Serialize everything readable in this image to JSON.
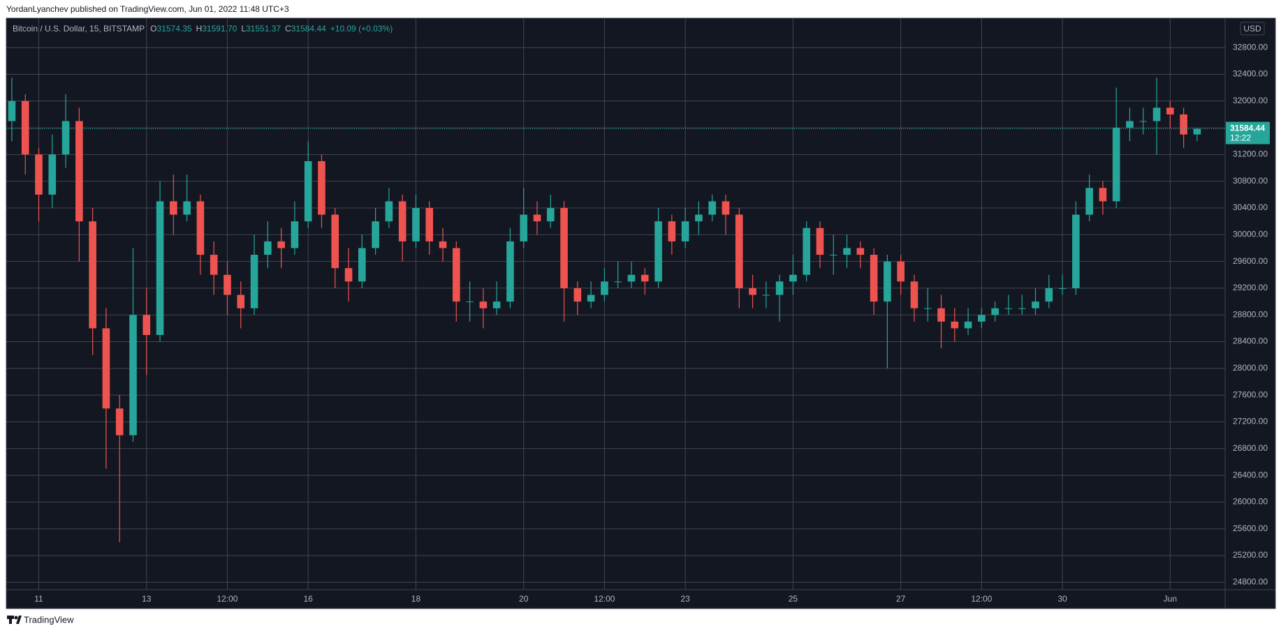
{
  "header": {
    "text": "YordanLyanchev published on TradingView.com, Jun 01, 2022 11:48 UTC+3"
  },
  "footer": {
    "brand": "TradingView"
  },
  "chart_data": {
    "type": "candlestick",
    "title": "Bitcoin / U.S. Dollar, 15, BITSTAMP",
    "legend": [
      {
        "key": "O",
        "value": "31574.35"
      },
      {
        "key": "H",
        "value": "31591.70"
      },
      {
        "key": "L",
        "value": "31551.37"
      },
      {
        "key": "C",
        "value": "31584.44"
      }
    ],
    "change": "+10.09 (+0.03%)",
    "currency": "USD",
    "countdown": "12:22",
    "up_color": "#26a69a",
    "down_color": "#ef5350",
    "grid": true,
    "xlim": [
      -0.59,
      22.02
    ],
    "xticks": [
      {
        "value": 0,
        "label": "11"
      },
      {
        "value": 2,
        "label": "13"
      },
      {
        "value": 3.5,
        "label": "12:00"
      },
      {
        "value": 5,
        "label": "16"
      },
      {
        "value": 7,
        "label": "18"
      },
      {
        "value": 9,
        "label": "20"
      },
      {
        "value": 10.5,
        "label": "12:00"
      },
      {
        "value": 12,
        "label": "23"
      },
      {
        "value": 14,
        "label": "25"
      },
      {
        "value": 16,
        "label": "27"
      },
      {
        "value": 17.5,
        "label": "12:00"
      },
      {
        "value": 19,
        "label": "30"
      },
      {
        "value": 21,
        "label": "Jun"
      }
    ],
    "ylim": [
      24720,
      33240
    ],
    "yticks": [
      {
        "value": 24800,
        "label": "24800.00"
      },
      {
        "value": 25200,
        "label": "25200.00"
      },
      {
        "value": 25600,
        "label": "25600.00"
      },
      {
        "value": 26000,
        "label": "26000.00"
      },
      {
        "value": 26400,
        "label": "26400.00"
      },
      {
        "value": 26800,
        "label": "26800.00"
      },
      {
        "value": 27200,
        "label": "27200.00"
      },
      {
        "value": 27600,
        "label": "27600.00"
      },
      {
        "value": 28000,
        "label": "28000.00"
      },
      {
        "value": 28400,
        "label": "28400.00"
      },
      {
        "value": 28800,
        "label": "28800.00"
      },
      {
        "value": 29200,
        "label": "29200.00"
      },
      {
        "value": 29600,
        "label": "29600.00"
      },
      {
        "value": 30000,
        "label": "30000.00"
      },
      {
        "value": 30400,
        "label": "30400.00"
      },
      {
        "value": 30800,
        "label": "30800.00"
      },
      {
        "value": 31200,
        "label": "31200.00"
      },
      {
        "value": 31600,
        "label": "31600.00"
      },
      {
        "value": 32000,
        "label": "32000.00"
      },
      {
        "value": 32400,
        "label": "32400.00"
      },
      {
        "value": 32800,
        "label": "32800.00"
      }
    ],
    "x": [
      -0.5,
      -0.25,
      0,
      0.25,
      0.5,
      0.75,
      1,
      1.25,
      1.5,
      1.75,
      2,
      2.25,
      2.5,
      2.75,
      3,
      3.25,
      3.5,
      3.75,
      4,
      4.25,
      4.5,
      4.75,
      5,
      5.25,
      5.5,
      5.75,
      6,
      6.25,
      6.5,
      6.75,
      7,
      7.25,
      7.5,
      7.75,
      8,
      8.25,
      8.5,
      8.75,
      9,
      9.25,
      9.5,
      9.75,
      10,
      10.25,
      10.5,
      10.75,
      11,
      11.25,
      11.5,
      11.75,
      12,
      12.25,
      12.5,
      12.75,
      13,
      13.25,
      13.5,
      13.75,
      14,
      14.25,
      14.5,
      14.75,
      15,
      15.25,
      15.5,
      15.75,
      16,
      16.25,
      16.5,
      16.75,
      17,
      17.25,
      17.5,
      17.75,
      18,
      18.25,
      18.5,
      18.75,
      19,
      19.25,
      19.5,
      19.75,
      20,
      20.25,
      20.5,
      20.75,
      21,
      21.25,
      21.5
    ],
    "open": [
      31700,
      32000,
      31200,
      30600,
      31200,
      31700,
      30200,
      28600,
      27400,
      27000,
      28800,
      28500,
      30500,
      30300,
      30500,
      29700,
      29400,
      29100,
      28900,
      29700,
      29900,
      29800,
      30200,
      31100,
      30300,
      29500,
      29300,
      29800,
      30200,
      30500,
      29900,
      30400,
      29900,
      29800,
      29000,
      29000,
      28900,
      29000,
      29900,
      30300,
      30200,
      30400,
      29200,
      29000,
      29100,
      29300,
      29300,
      29400,
      29300,
      30200,
      29900,
      30200,
      30300,
      30500,
      30300,
      29200,
      29100,
      29100,
      29300,
      29400,
      30100,
      29700,
      29700,
      29800,
      29700,
      29000,
      29600,
      29300,
      28900,
      28900,
      28700,
      28600,
      28700,
      28800,
      28900,
      28900,
      28900,
      29000,
      29200,
      29200,
      30300,
      30700,
      30500,
      31600,
      31700,
      31700,
      31900,
      31800,
      31500
    ],
    "high": [
      32350,
      32100,
      31300,
      31500,
      32100,
      31900,
      30400,
      28900,
      27600,
      29800,
      29200,
      30800,
      30900,
      30900,
      30600,
      29900,
      29600,
      29300,
      30000,
      30200,
      30100,
      30500,
      31400,
      31200,
      30400,
      29800,
      30000,
      30400,
      30700,
      30600,
      30600,
      30500,
      30100,
      29900,
      29300,
      29200,
      29300,
      30100,
      30700,
      30500,
      30600,
      30500,
      29300,
      29300,
      29500,
      29600,
      29600,
      29500,
      30400,
      30300,
      30400,
      30500,
      30600,
      30600,
      30400,
      29400,
      29300,
      29400,
      29700,
      30200,
      30200,
      30000,
      30000,
      29900,
      29800,
      29700,
      29700,
      29400,
      29200,
      29100,
      28900,
      28900,
      28900,
      29000,
      29100,
      29100,
      29200,
      29400,
      29400,
      30500,
      30900,
      30800,
      32200,
      31900,
      31900,
      32350,
      32000,
      31900,
      31600
    ],
    "low": [
      31400,
      30900,
      30200,
      30400,
      31000,
      29600,
      28200,
      26500,
      25400,
      26900,
      27900,
      28400,
      30000,
      30200,
      29400,
      29100,
      28800,
      28600,
      28800,
      29500,
      29500,
      29700,
      30100,
      30100,
      29200,
      29000,
      29200,
      29700,
      30100,
      29600,
      29800,
      29700,
      29600,
      28700,
      28700,
      28600,
      28800,
      28900,
      29800,
      30000,
      30100,
      28700,
      28800,
      28900,
      29000,
      29200,
      29200,
      29100,
      29200,
      29700,
      29800,
      30000,
      30200,
      30000,
      28900,
      28900,
      28900,
      28700,
      29100,
      29300,
      29500,
      29400,
      29500,
      29500,
      28800,
      28000,
      29100,
      28700,
      28700,
      28300,
      28400,
      28500,
      28600,
      28700,
      28800,
      28800,
      28800,
      28900,
      29100,
      29100,
      30200,
      30300,
      30400,
      31400,
      31500,
      31200,
      31600,
      31300,
      31400
    ],
    "close": [
      32000,
      31200,
      30600,
      31200,
      31700,
      30200,
      28600,
      27400,
      27000,
      28800,
      28500,
      30500,
      30300,
      30500,
      29700,
      29400,
      29100,
      28900,
      29700,
      29900,
      29800,
      30200,
      31100,
      30300,
      29500,
      29300,
      29800,
      30200,
      30500,
      29900,
      30400,
      29900,
      29800,
      29000,
      29000,
      28900,
      29000,
      29900,
      30300,
      30200,
      30400,
      29200,
      29000,
      29100,
      29300,
      29300,
      29400,
      29300,
      30200,
      29900,
      30200,
      30300,
      30500,
      30300,
      29200,
      29100,
      29100,
      29300,
      29400,
      30100,
      29700,
      29700,
      29800,
      29700,
      29000,
      29600,
      29300,
      28900,
      28900,
      28700,
      28600,
      28700,
      28800,
      28900,
      28900,
      28900,
      29000,
      29200,
      29200,
      30300,
      30700,
      30500,
      31600,
      31700,
      31700,
      31900,
      31800,
      31500,
      31584.44
    ]
  }
}
